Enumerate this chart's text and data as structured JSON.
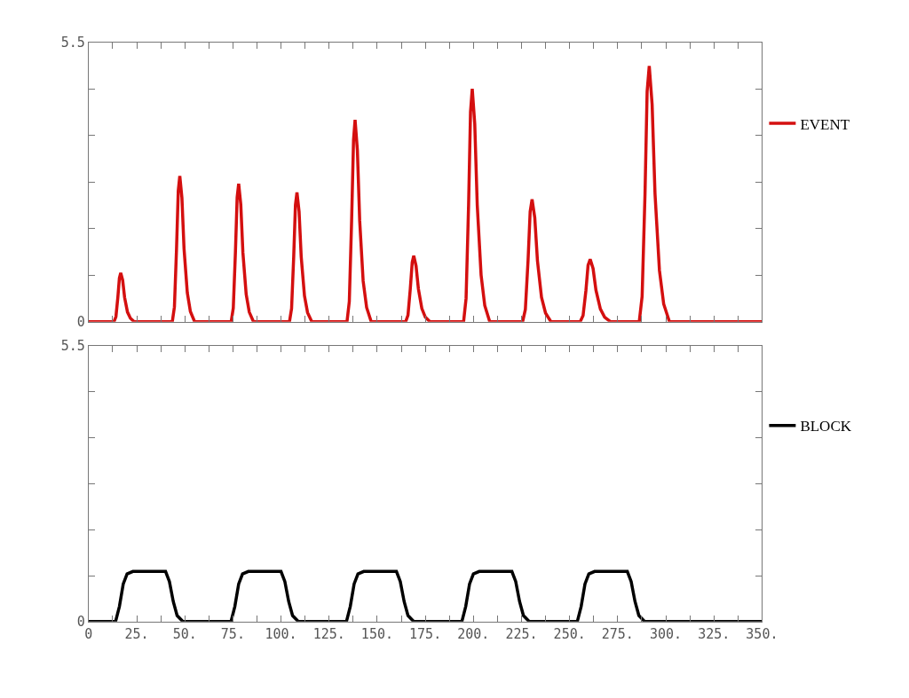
{
  "chart_data": [
    {
      "type": "line",
      "xlim": [
        0,
        350
      ],
      "ylim": [
        0,
        5.5
      ],
      "tick_labels": "y",
      "legend": "right",
      "line_style": "solid",
      "marker": "none",
      "xticks": [
        {
          "value": 0,
          "label": null
        },
        {
          "value": 12.5,
          "label": null
        },
        {
          "value": 25,
          "label": null
        },
        {
          "value": 37.5,
          "label": null
        },
        {
          "value": 50,
          "label": null
        },
        {
          "value": 62.5,
          "label": null
        },
        {
          "value": 75,
          "label": null
        },
        {
          "value": 87.5,
          "label": null
        },
        {
          "value": 100,
          "label": null
        },
        {
          "value": 112.5,
          "label": null
        },
        {
          "value": 125,
          "label": null
        },
        {
          "value": 137.5,
          "label": null
        },
        {
          "value": 150,
          "label": null
        },
        {
          "value": 162.5,
          "label": null
        },
        {
          "value": 175,
          "label": null
        },
        {
          "value": 187.5,
          "label": null
        },
        {
          "value": 200,
          "label": null
        },
        {
          "value": 212.5,
          "label": null
        },
        {
          "value": 225,
          "label": null
        },
        {
          "value": 237.5,
          "label": null
        },
        {
          "value": 250,
          "label": null
        },
        {
          "value": 262.5,
          "label": null
        },
        {
          "value": 275,
          "label": null
        },
        {
          "value": 287.5,
          "label": null
        },
        {
          "value": 300,
          "label": null
        },
        {
          "value": 312.5,
          "label": null
        },
        {
          "value": 325,
          "label": null
        },
        {
          "value": 337.5,
          "label": null
        },
        {
          "value": 350,
          "label": null
        }
      ],
      "yticks": [
        0,
        {
          "value": 0.917,
          "label": null
        },
        {
          "value": 1.833,
          "label": null
        },
        {
          "value": 2.75,
          "label": null
        },
        {
          "value": 3.667,
          "label": null
        },
        {
          "value": 4.583,
          "label": null
        },
        5.5
      ],
      "series": [
        {
          "name": "EVENT",
          "color": "#d40f0f",
          "x": [
            0,
            13.2,
            14.2,
            15.2,
            16,
            16.7,
            17.7,
            18.7,
            20.2,
            21.7,
            23.7,
            43.5,
            44.6,
            45.7,
            46.6,
            47.4,
            48.5,
            49.6,
            51.3,
            52.9,
            55.1,
            74.1,
            75.2,
            76.3,
            77.2,
            78,
            79.1,
            80.2,
            81.9,
            83.5,
            85.7,
            104.4,
            105.5,
            106.6,
            107.5,
            108.3,
            109.4,
            110.5,
            112.2,
            113.8,
            116,
            134.3,
            135.5,
            136.7,
            137.7,
            138.5,
            139.7,
            140.9,
            142.7,
            144.5,
            146.9,
            164.8,
            166,
            167.2,
            168.2,
            169,
            170.2,
            171.4,
            173.2,
            175,
            177.4,
            194.9,
            196.2,
            197.5,
            198.5,
            199.4,
            200.7,
            202,
            204,
            205.9,
            208.5,
            225.6,
            227,
            228.4,
            229.5,
            230.5,
            231.9,
            233.3,
            235.4,
            237.5,
            240.3,
            255.5,
            257,
            258.5,
            259.6,
            260.7,
            262.2,
            263.7,
            266,
            268.2,
            271.2,
            286.2,
            287.7,
            289.2,
            290.3,
            291.4,
            292.9,
            294.4,
            296.7,
            298.9,
            301.9,
            350
          ],
          "values": [
            0,
            0,
            0.1,
            0.48,
            0.86,
            0.96,
            0.82,
            0.48,
            0.19,
            0.07,
            0,
            0,
            0.29,
            1.44,
            2.58,
            2.87,
            2.44,
            1.44,
            0.57,
            0.2,
            0,
            0,
            0.27,
            1.36,
            2.45,
            2.72,
            2.31,
            1.36,
            0.54,
            0.19,
            0,
            0,
            0.26,
            1.28,
            2.3,
            2.55,
            2.17,
            1.28,
            0.51,
            0.18,
            0,
            0,
            0.4,
            1.99,
            3.58,
            3.98,
            3.38,
            1.99,
            0.8,
            0.28,
            0,
            0,
            0.13,
            0.65,
            1.17,
            1.3,
            1.1,
            0.65,
            0.26,
            0.09,
            0,
            0,
            0.46,
            2.3,
            4.13,
            4.59,
            3.9,
            2.3,
            0.92,
            0.32,
            0,
            0,
            0.24,
            1.2,
            2.17,
            2.41,
            2.05,
            1.2,
            0.48,
            0.17,
            0,
            0,
            0.12,
            0.62,
            1.11,
            1.23,
            1.05,
            0.62,
            0.25,
            0.09,
            0,
            0,
            0.5,
            2.52,
            4.54,
            5.04,
            4.28,
            2.52,
            1.01,
            0.35,
            0,
            0
          ]
        }
      ]
    },
    {
      "type": "line",
      "xlim": [
        0,
        350
      ],
      "ylim": [
        0,
        5.5
      ],
      "legend": "right",
      "line_style": "solid",
      "marker": "none",
      "xticks": [
        {
          "value": 0,
          "label": "0"
        },
        {
          "value": 12.5,
          "label": null
        },
        {
          "value": 25,
          "label": "25."
        },
        {
          "value": 37.5,
          "label": null
        },
        {
          "value": 50,
          "label": "50."
        },
        {
          "value": 62.5,
          "label": null
        },
        {
          "value": 75,
          "label": "75."
        },
        {
          "value": 87.5,
          "label": null
        },
        {
          "value": 100,
          "label": "100."
        },
        {
          "value": 112.5,
          "label": null
        },
        {
          "value": 125,
          "label": "125."
        },
        {
          "value": 137.5,
          "label": null
        },
        {
          "value": 150,
          "label": "150."
        },
        {
          "value": 162.5,
          "label": null
        },
        {
          "value": 175,
          "label": "175."
        },
        {
          "value": 187.5,
          "label": null
        },
        {
          "value": 200,
          "label": "200."
        },
        {
          "value": 212.5,
          "label": null
        },
        {
          "value": 225,
          "label": "225."
        },
        {
          "value": 237.5,
          "label": null
        },
        {
          "value": 250,
          "label": "250."
        },
        {
          "value": 262.5,
          "label": null
        },
        {
          "value": 275,
          "label": "275."
        },
        {
          "value": 287.5,
          "label": null
        },
        {
          "value": 300,
          "label": "300."
        },
        {
          "value": 312.5,
          "label": null
        },
        {
          "value": 325,
          "label": "325."
        },
        {
          "value": 337.5,
          "label": null
        },
        {
          "value": 350,
          "label": "350."
        }
      ],
      "yticks": [
        0,
        {
          "value": 0.917,
          "label": null
        },
        {
          "value": 1.833,
          "label": null
        },
        {
          "value": 2.75,
          "label": null
        },
        {
          "value": 3.667,
          "label": null
        },
        {
          "value": 4.583,
          "label": null
        },
        5.5
      ],
      "series": [
        {
          "name": "BLOCK",
          "color": "#000000",
          "x": [
            0,
            14,
            16,
            18,
            20,
            23,
            40,
            42,
            44,
            46,
            49,
            74,
            76,
            78,
            80,
            83,
            100,
            102,
            104,
            106,
            109,
            134,
            136,
            138,
            140,
            143,
            160,
            162,
            164,
            166,
            169,
            194,
            196,
            198,
            200,
            203,
            220,
            222,
            224,
            226,
            229,
            254,
            256,
            258,
            260,
            263,
            280,
            282,
            284,
            286,
            289,
            350
          ],
          "values": [
            0,
            0,
            0.3,
            0.75,
            0.95,
            1,
            1,
            0.8,
            0.4,
            0.12,
            0,
            0,
            0.3,
            0.75,
            0.95,
            1,
            1,
            0.8,
            0.4,
            0.12,
            0,
            0,
            0.3,
            0.75,
            0.95,
            1,
            1,
            0.8,
            0.4,
            0.12,
            0,
            0,
            0.3,
            0.75,
            0.95,
            1,
            1,
            0.8,
            0.4,
            0.12,
            0,
            0,
            0.3,
            0.75,
            0.95,
            1,
            1,
            0.8,
            0.4,
            0.12,
            0,
            0
          ]
        }
      ]
    }
  ]
}
